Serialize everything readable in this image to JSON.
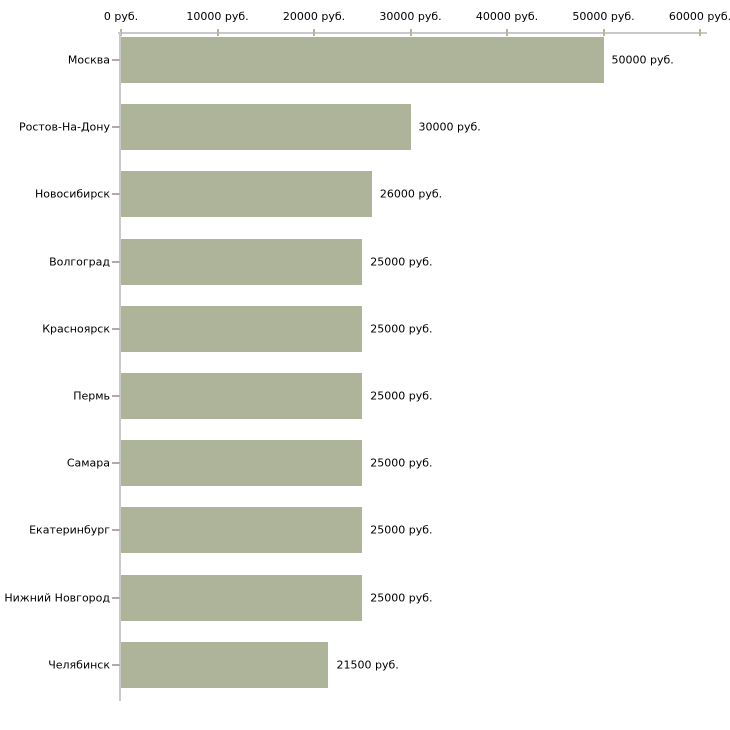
{
  "chart_data": {
    "type": "bar",
    "orientation": "horizontal",
    "title": "",
    "categories": [
      "Москва",
      "Ростов-На-Дону",
      "Новосибирск",
      "Волгоград",
      "Красноярск",
      "Пермь",
      "Самара",
      "Екатеринбург",
      "Нижний Новгород",
      "Челябинск"
    ],
    "values": [
      50000,
      30000,
      26000,
      25000,
      25000,
      25000,
      25000,
      25000,
      25000,
      21500
    ],
    "bar_labels": [
      "50000 руб.",
      "30000 руб.",
      "26000 руб.",
      "25000 руб.",
      "25000 руб.",
      "25000 руб.",
      "25000 руб.",
      "25000 руб.",
      "25000 руб.",
      "21500 руб."
    ],
    "unit": "руб.",
    "legend": "none",
    "grid": "off",
    "x_axis": {
      "position": "top",
      "range": [
        0,
        60000
      ],
      "tick_values": [
        0,
        10000,
        20000,
        30000,
        40000,
        50000,
        60000
      ],
      "tick_labels": [
        "0 руб.",
        "10000 руб.",
        "20000 руб.",
        "30000 руб.",
        "40000 руб.",
        "50000 руб.",
        "60000 руб."
      ]
    },
    "colors": {
      "bar": "#adb49a",
      "axis_line": "#c9c9c9",
      "x_tick": "#b8b88a",
      "y_tick": "#b5a8a8",
      "text": "#000000",
      "background": "#ffffff"
    }
  }
}
